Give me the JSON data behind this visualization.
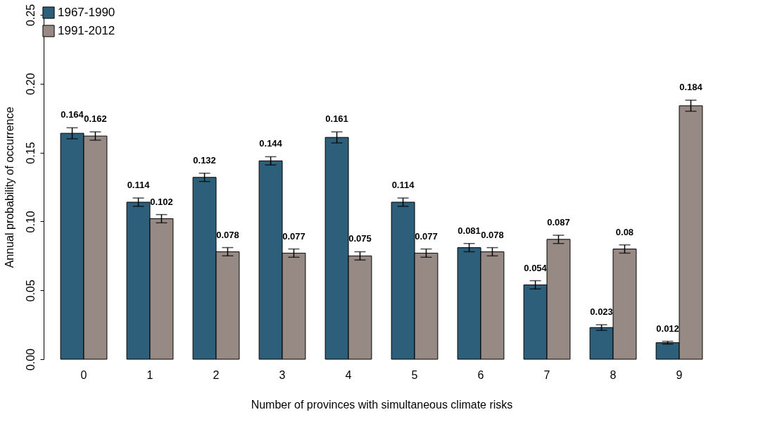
{
  "chart_data": {
    "type": "bar",
    "xlabel": "Number of provinces with simultaneous climate risks",
    "ylabel": "Annual probability of occurrence",
    "categories": [
      "0",
      "1",
      "2",
      "3",
      "4",
      "5",
      "6",
      "7",
      "8",
      "9"
    ],
    "series": [
      {
        "name": "1967-1990",
        "color": "#2d5f7b",
        "values": [
          0.164,
          0.114,
          0.132,
          0.144,
          0.161,
          0.114,
          0.081,
          0.054,
          0.023,
          0.012
        ],
        "errors": [
          0.004,
          0.003,
          0.003,
          0.003,
          0.004,
          0.003,
          0.003,
          0.003,
          0.002,
          0.001
        ]
      },
      {
        "name": "1991-2012",
        "color": "#978a85",
        "values": [
          0.162,
          0.102,
          0.078,
          0.077,
          0.075,
          0.077,
          0.078,
          0.087,
          0.08,
          0.184
        ],
        "errors": [
          0.003,
          0.003,
          0.003,
          0.003,
          0.003,
          0.003,
          0.003,
          0.003,
          0.003,
          0.004
        ]
      }
    ],
    "ylim": [
      0,
      0.25
    ],
    "yticks": [
      {
        "value": 0,
        "label": "0.00"
      },
      0.05,
      {
        "value": 0.1,
        "label": "0.10"
      },
      0.15,
      {
        "value": 0.2,
        "label": "0.20"
      },
      0.25
    ],
    "data_labels": true,
    "grid": false,
    "legend": "top left"
  }
}
